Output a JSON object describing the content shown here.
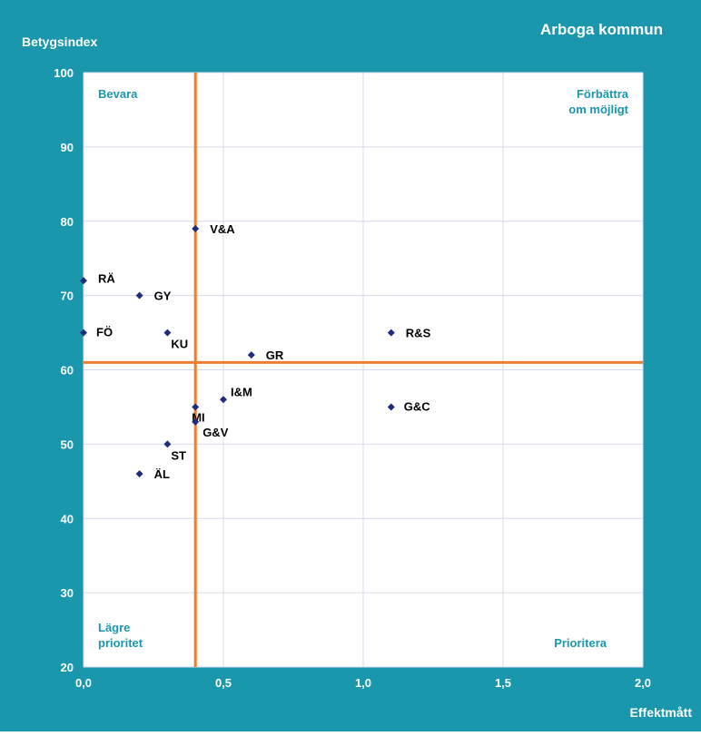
{
  "chart_data": {
    "type": "scatter",
    "title": "Arboga kommun",
    "xlabel": "Effektmått",
    "ylabel": "Betygsindex",
    "xlim": [
      0,
      2
    ],
    "ylim": [
      20,
      100
    ],
    "x_ticks": [
      "0,0",
      "0,5",
      "1,0",
      "1,5",
      "2,0"
    ],
    "x_tick_values": [
      0,
      0.5,
      1,
      1.5,
      2
    ],
    "y_ticks": [
      "20",
      "30",
      "40",
      "50",
      "60",
      "70",
      "80",
      "90",
      "100"
    ],
    "y_tick_values": [
      20,
      30,
      40,
      50,
      60,
      70,
      80,
      90,
      100
    ],
    "grid": true,
    "points": [
      {
        "label": "V&A",
        "x": 0.4,
        "y": 79
      },
      {
        "label": "RÄ",
        "x": 0.0,
        "y": 72
      },
      {
        "label": "GY",
        "x": 0.2,
        "y": 70
      },
      {
        "label": "FÖ",
        "x": 0.0,
        "y": 65
      },
      {
        "label": "KU",
        "x": 0.3,
        "y": 65
      },
      {
        "label": "R&S",
        "x": 1.1,
        "y": 65
      },
      {
        "label": "GR",
        "x": 0.6,
        "y": 62
      },
      {
        "label": "I&M",
        "x": 0.5,
        "y": 56
      },
      {
        "label": "MI",
        "x": 0.4,
        "y": 55
      },
      {
        "label": "G&C",
        "x": 1.1,
        "y": 55
      },
      {
        "label": "G&V",
        "x": 0.4,
        "y": 53
      },
      {
        "label": "ST",
        "x": 0.3,
        "y": 50
      },
      {
        "label": "ÄL",
        "x": 0.2,
        "y": 46
      }
    ],
    "reference_lines": {
      "x": 0.4,
      "y": 61
    },
    "quadrants": {
      "top_left": [
        "Bevara"
      ],
      "top_right": [
        "Förbättra",
        "om möjligt"
      ],
      "bottom_left": [
        "Lägre",
        "prioritet"
      ],
      "bottom_right": [
        "Prioritera"
      ]
    },
    "colors": {
      "frame": "#1a97ac",
      "plot_bg": "#ffffff",
      "grid": "#d9d9ec",
      "reference_line": "#ed7d31",
      "marker": "#1f2d7a",
      "quadrant_text": "#1a97ac",
      "axis_text": "#ffffff"
    }
  }
}
